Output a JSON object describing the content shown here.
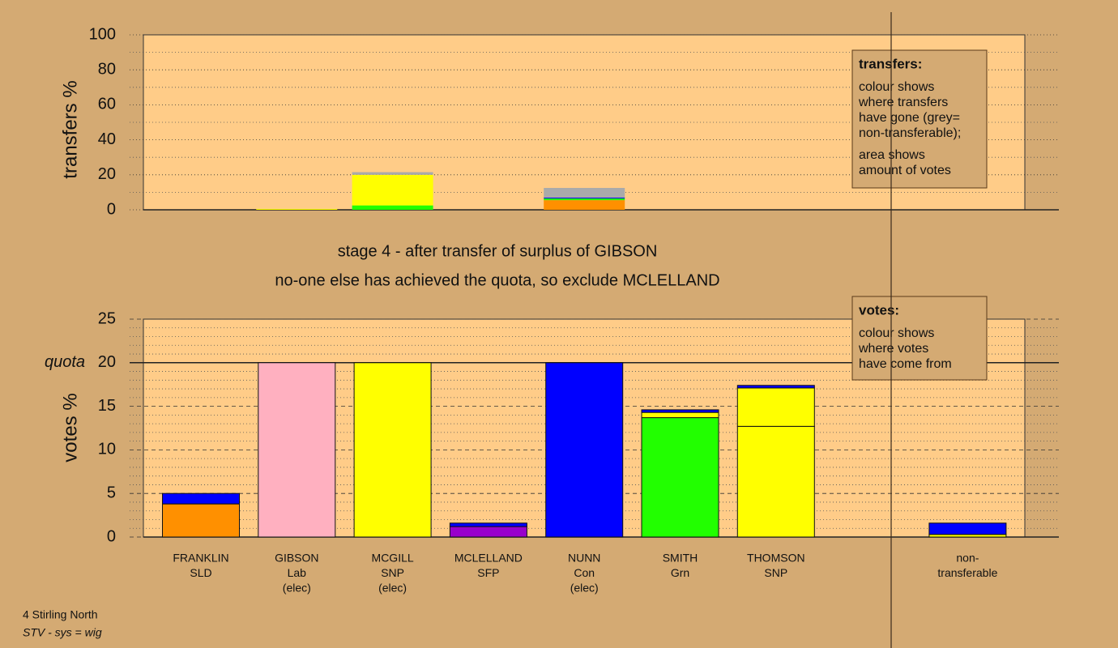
{
  "stage": {
    "title": "stage 4 - after transfer of surplus of GIBSON",
    "note": "no-one else has achieved the quota, so exclude MCLELLAND"
  },
  "footer": {
    "contest": "4 Stirling North",
    "system": "STV - sys = wig"
  },
  "chart_data": [
    {
      "type": "stacked-bar",
      "ylabel": "transfers %",
      "ylim": [
        0,
        100
      ],
      "yticks": [
        0,
        20,
        40,
        60,
        80,
        100
      ],
      "minor_yticks": [
        10,
        30,
        50,
        70,
        90
      ],
      "grid_style": "dotted",
      "bar_outline": false,
      "legend_box": {
        "title": "transfers:",
        "paragraphs": [
          [
            "colour shows",
            "where transfers",
            "have gone (grey=",
            "non-transferable);"
          ],
          [
            "area shows",
            "amount of votes"
          ]
        ]
      },
      "series": [
        {
          "color": "#ff9000",
          "values": [
            0,
            0,
            0,
            0,
            5.5,
            0,
            0,
            0,
            0
          ]
        },
        {
          "color": "#22ff00",
          "values": [
            0,
            0,
            2.5,
            0,
            1,
            0,
            0,
            0,
            0
          ]
        },
        {
          "color": "#0000ff",
          "values": [
            0,
            0,
            0,
            0,
            0.5,
            0,
            0,
            0,
            0
          ]
        },
        {
          "color": "#ffff00",
          "values": [
            0,
            0.5,
            17.5,
            0,
            0,
            0,
            0,
            0,
            0
          ]
        },
        {
          "color": "#aaaaaa",
          "values": [
            0,
            0,
            1.5,
            0,
            5.5,
            0,
            0,
            0,
            0
          ]
        }
      ]
    },
    {
      "type": "stacked-bar",
      "ylabel": "votes %",
      "ylim": [
        0,
        25
      ],
      "yticks": [
        0,
        5,
        10,
        15,
        20,
        25
      ],
      "minor_yticks": [
        1,
        2,
        3,
        4,
        6,
        7,
        8,
        9,
        11,
        12,
        13,
        14,
        16,
        17,
        18,
        19,
        21,
        22,
        23,
        24
      ],
      "grid_style": "dashed",
      "bar_outline": true,
      "quota": 20,
      "quota_label": "quota",
      "legend_box": {
        "title": "votes:",
        "paragraphs": [
          [
            "colour shows",
            "where votes",
            "have come from"
          ]
        ]
      },
      "categories": [
        [
          "FRANKLIN",
          "SLD"
        ],
        [
          "GIBSON",
          "Lab",
          "(elec)"
        ],
        [
          "MCGILL",
          "SNP",
          "(elec)"
        ],
        [
          "MCLELLAND",
          "SFP"
        ],
        [
          "NUNN",
          "Con",
          "(elec)"
        ],
        [
          "SMITH",
          "Grn"
        ],
        [
          "THOMSON",
          "SNP"
        ],
        null,
        [
          "non-",
          "transferable"
        ]
      ],
      "series": [
        {
          "color": "#ff9000",
          "values": [
            3.8,
            0,
            0,
            0,
            0,
            0,
            0,
            0,
            0
          ]
        },
        {
          "color": "#ffb0c0",
          "values": [
            0,
            20,
            0,
            0,
            0,
            0,
            0,
            0,
            0
          ]
        },
        {
          "color": "#9900cc",
          "values": [
            0,
            0,
            0,
            1.2,
            0,
            0,
            0,
            0,
            0
          ]
        },
        {
          "color": "#22ff00",
          "values": [
            0,
            0,
            0,
            0,
            0,
            13.7,
            0,
            0,
            0
          ]
        },
        {
          "color": "#ffff00",
          "values": [
            0,
            0,
            0,
            0,
            0,
            0,
            12.7,
            0,
            0
          ]
        },
        {
          "color": "#ffff00",
          "values": [
            0,
            0,
            20,
            0,
            0,
            0.6,
            4.4,
            0,
            0.3
          ]
        },
        {
          "color": "#0000ff",
          "values": [
            1.2,
            0,
            0,
            0.4,
            20,
            0.3,
            0.3,
            0,
            1.3
          ]
        }
      ]
    }
  ]
}
